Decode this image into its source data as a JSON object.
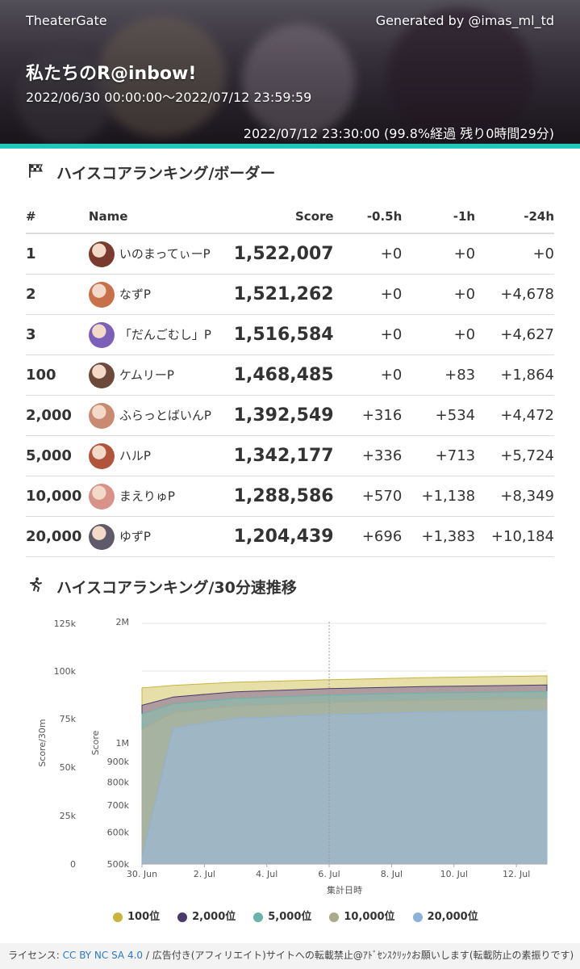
{
  "header": {
    "site": "TheaterGate",
    "generated_by": "Generated by @imas_ml_td",
    "event_title": "私たちのR@inbow!",
    "period": "2022/06/30 00:00:00～2022/07/12 23:59:59",
    "current": "2022/07/12 23:30:00 (99.8%経過 残り0時間29分)"
  },
  "ranking": {
    "title": "ハイスコアランキング/ボーダー",
    "icon": "checkered-flag-icon",
    "columns": [
      "#",
      "Name",
      "Score",
      "-0.5h",
      "-1h",
      "-24h"
    ],
    "rows": [
      {
        "rank": "1",
        "name": "いのまってぃーP",
        "score": "1,522,007",
        "d05": "+0",
        "d1": "+0",
        "d24": "+0",
        "avatar_color": "#7a3a2e"
      },
      {
        "rank": "2",
        "name": "なずP",
        "score": "1,521,262",
        "d05": "+0",
        "d1": "+0",
        "d24": "+4,678",
        "avatar_color": "#c8704a"
      },
      {
        "rank": "3",
        "name": "「だんごむし」P",
        "score": "1,516,584",
        "d05": "+0",
        "d1": "+0",
        "d24": "+4,627",
        "avatar_color": "#7b5fb8"
      },
      {
        "rank": "100",
        "name": "ケムリーP",
        "score": "1,468,485",
        "d05": "+0",
        "d1": "+83",
        "d24": "+1,864",
        "avatar_color": "#6b4a3a"
      },
      {
        "rank": "2,000",
        "name": "ふらっとばいんP",
        "score": "1,392,549",
        "d05": "+316",
        "d1": "+534",
        "d24": "+4,472",
        "avatar_color": "#c98a72"
      },
      {
        "rank": "5,000",
        "name": "ハルP",
        "score": "1,342,177",
        "d05": "+336",
        "d1": "+713",
        "d24": "+5,724",
        "avatar_color": "#b0553c"
      },
      {
        "rank": "10,000",
        "name": "まえりゅP",
        "score": "1,288,586",
        "d05": "+570",
        "d1": "+1,138",
        "d24": "+8,349",
        "avatar_color": "#d8928a"
      },
      {
        "rank": "20,000",
        "name": "ゆずP",
        "score": "1,204,439",
        "d05": "+696",
        "d1": "+1,383",
        "d24": "+10,184",
        "avatar_color": "#5e5a6a"
      }
    ]
  },
  "speed": {
    "title": "ハイスコアランキング/30分速推移",
    "icon": "running-person-icon"
  },
  "chart_data": {
    "type": "area",
    "x_axis_label": "集計日時",
    "left_axis_label": "Score/30m",
    "right_axis_label": "Score",
    "x_ticks": [
      "30. Jun",
      "2. Jul",
      "4. Jul",
      "6. Jul",
      "8. Jul",
      "10. Jul",
      "12. Jul"
    ],
    "left_ticks": [
      "0",
      "25k",
      "50k",
      "75k",
      "100k",
      "125k"
    ],
    "score_ticks": [
      "500k",
      "600k",
      "700k",
      "800k",
      "900k",
      "1M",
      "2M"
    ],
    "x_range": [
      "2022-06-30",
      "2022-07-12 23:30"
    ],
    "score_range_log": [
      500000,
      2000000
    ],
    "series": [
      {
        "name": "100位",
        "color": "#c9b43a",
        "fill": "#e3dc9e",
        "x": [
          "2022-06-30",
          "2022-07-01",
          "2022-07-03",
          "2022-07-06",
          "2022-07-09",
          "2022-07-12 23:30"
        ],
        "y": [
          1370000,
          1390000,
          1415000,
          1435000,
          1452000,
          1468485
        ]
      },
      {
        "name": "2,000位",
        "color": "#4a3a6a",
        "fill": "#a6949e",
        "x": [
          "2022-06-30",
          "2022-07-01",
          "2022-07-03",
          "2022-07-06",
          "2022-07-09",
          "2022-07-12 23:30"
        ],
        "y": [
          1240000,
          1300000,
          1340000,
          1365000,
          1380000,
          1392549
        ]
      },
      {
        "name": "5,000位",
        "color": "#6ab3a8",
        "fill": "#94b4a8",
        "x": [
          "2022-06-30",
          "2022-07-01",
          "2022-07-03",
          "2022-07-06",
          "2022-07-09",
          "2022-07-12 23:30"
        ],
        "y": [
          1180000,
          1250000,
          1290000,
          1315000,
          1330000,
          1342177
        ]
      },
      {
        "name": "10,000位",
        "color": "#a9ab8c",
        "fill": "#a8b4a0",
        "x": [
          "2022-06-30",
          "2022-07-01",
          "2022-07-03",
          "2022-07-06",
          "2022-07-09",
          "2022-07-12 23:30"
        ],
        "y": [
          1080000,
          1190000,
          1235000,
          1260000,
          1276000,
          1288586
        ]
      },
      {
        "name": "20,000位",
        "color": "#8fb0d8",
        "fill": "#9fb6c8",
        "x": [
          "2022-06-30",
          "2022-07-01",
          "2022-07-03",
          "2022-07-06",
          "2022-07-09",
          "2022-07-12 23:30"
        ],
        "y": [
          520000,
          1090000,
          1150000,
          1175000,
          1192000,
          1204439
        ]
      }
    ],
    "grid": true,
    "current_marker_date": "2022-07-06",
    "legend_position": "bottom"
  },
  "footer": {
    "license_label": "ライセンス: ",
    "license_link": "CC BY NC SA 4.0",
    "notice": " / 広告付き(アフィリエイト)サイトへの転載禁止@ｱﾄﾞｾﾝｽｸﾘｯｸお願いします(転載防止の素振りです)"
  }
}
